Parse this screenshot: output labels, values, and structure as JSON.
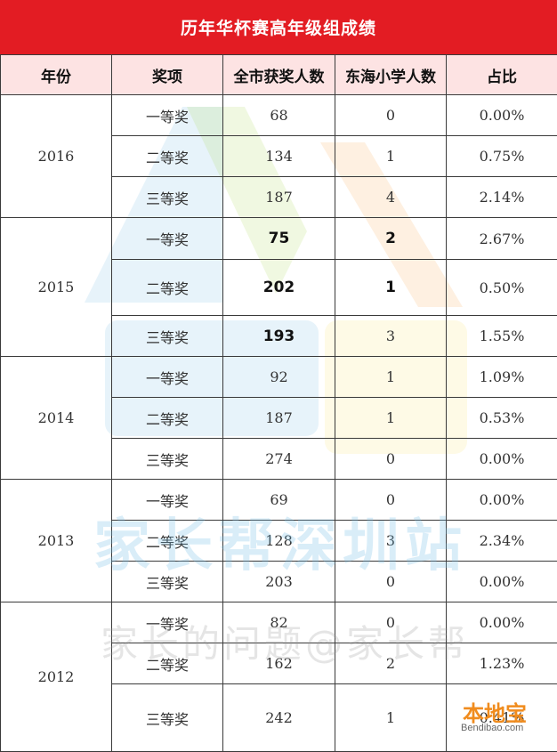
{
  "title": "历年华杯赛高年级组成绩",
  "headers": [
    "年份",
    "奖项",
    "全市获奖人数",
    "东海小学人数",
    "占比"
  ],
  "groups": [
    {
      "year": "2016",
      "rows": [
        {
          "prize": "一等奖",
          "city": "68",
          "school": "0",
          "ratio": "0.00%"
        },
        {
          "prize": "二等奖",
          "city": "134",
          "school": "1",
          "ratio": "0.75%"
        },
        {
          "prize": "三等奖",
          "city": "187",
          "school": "4",
          "ratio": "2.14%"
        }
      ]
    },
    {
      "year": "2015",
      "rows": [
        {
          "prize": "一等奖",
          "city": "75",
          "school": "2",
          "ratio": "2.67%"
        },
        {
          "prize": "二等奖",
          "city": "202",
          "school": "1",
          "ratio": "0.50%"
        },
        {
          "prize": "三等奖",
          "city": "193",
          "school": "3",
          "ratio": "1.55%"
        }
      ]
    },
    {
      "year": "2014",
      "rows": [
        {
          "prize": "一等奖",
          "city": "92",
          "school": "1",
          "ratio": "1.09%"
        },
        {
          "prize": "二等奖",
          "city": "187",
          "school": "1",
          "ratio": "0.53%"
        },
        {
          "prize": "三等奖",
          "city": "274",
          "school": "0",
          "ratio": "0.00%"
        }
      ]
    },
    {
      "year": "2013",
      "rows": [
        {
          "prize": "一等奖",
          "city": "69",
          "school": "0",
          "ratio": "0.00%"
        },
        {
          "prize": "二等奖",
          "city": "128",
          "school": "3",
          "ratio": "2.34%"
        },
        {
          "prize": "三等奖",
          "city": "203",
          "school": "0",
          "ratio": "0.00%"
        }
      ]
    },
    {
      "year": "2012",
      "rows": [
        {
          "prize": "一等奖",
          "city": "82",
          "school": "0",
          "ratio": "0.00%"
        },
        {
          "prize": "二等奖",
          "city": "162",
          "school": "2",
          "ratio": "1.23%"
        },
        {
          "prize": "三等奖",
          "city": "242",
          "school": "1",
          "ratio": "0.41%"
        }
      ]
    }
  ],
  "watermark": {
    "big": "家长帮深圳站",
    "small": "家长的问题@家长帮"
  },
  "logo": {
    "zh": "本地宝",
    "en": "Bendibao.com"
  },
  "colors": {
    "title_bg": "#e31c23",
    "header_bg": "#fde3e3"
  }
}
